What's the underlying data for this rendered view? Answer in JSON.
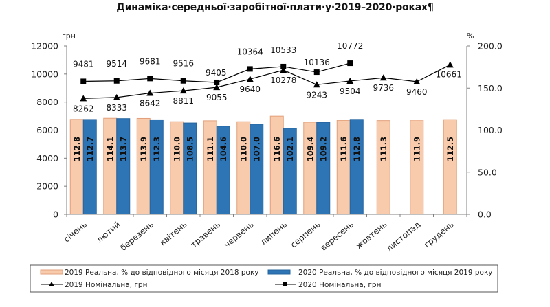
{
  "title": "Динаміка·середньої·заробітної·плати·у·2019–2020·роках¶",
  "chart_data": {
    "type": "bar",
    "title": "Динаміка·середньої·заробітної·плати·у·2019–2020·роках¶",
    "categories": [
      "січень",
      "лютий",
      "березень",
      "квітень",
      "травень",
      "червень",
      "липень",
      "серпень",
      "вересень",
      "жовтень",
      "листопад",
      "грудень"
    ],
    "left_axis": {
      "label": "грн",
      "ylim": [
        0,
        12000
      ],
      "ticks": [
        "0",
        "2000",
        "4000",
        "6000",
        "8000",
        "10000",
        "12000"
      ]
    },
    "right_axis": {
      "label": "%",
      "ylim": [
        0,
        200
      ],
      "ticks": [
        "0.0",
        "50.0",
        "100.0",
        "150.0",
        "200.0"
      ]
    },
    "grid": false,
    "legend_position": "bottom",
    "series": [
      {
        "name": "2019 Реальна, % до відповідного місяця 2018 року",
        "type": "bar",
        "axis": "right",
        "color": "#F8CBAD",
        "edge_color": "#E2A07A",
        "values": [
          112.8,
          114.1,
          113.9,
          110.0,
          111.1,
          110.0,
          116.6,
          109.4,
          111.6,
          111.3,
          111.9,
          112.5
        ],
        "labels": [
          "112.8",
          "114.1",
          "113.9",
          "110.0",
          "111.1",
          "110.0",
          "116.6",
          "109.4",
          "111.6",
          "111.3",
          "111.9",
          "112.5"
        ]
      },
      {
        "name": "2020 Реальна, % до відповідного місяця 2019 року",
        "type": "bar",
        "axis": "right",
        "color": "#2E75B6",
        "edge_color": "#26649E",
        "values": [
          112.7,
          113.7,
          112.3,
          108.5,
          104.6,
          107.0,
          102.1,
          109.2,
          112.8,
          null,
          null,
          null
        ],
        "labels": [
          "112.7",
          "113.7",
          "112.3",
          "108.5",
          "104.6",
          "107.0",
          "102.1",
          "109.2",
          "112.8",
          null,
          null,
          null
        ]
      },
      {
        "name": "2019 Номінальна, грн",
        "type": "line",
        "marker": "triangle",
        "axis": "left",
        "color": "#000000",
        "values": [
          8262,
          8333,
          8642,
          8811,
          9055,
          9640,
          10278,
          9243,
          9504,
          9736,
          9460,
          10661
        ],
        "labels": [
          "8262",
          "8333",
          "8642",
          "8811",
          "9055",
          "9640",
          "10278",
          "9243",
          "9504",
          "9736",
          "9460",
          "10661"
        ]
      },
      {
        "name": "2020 Номінальна, грн",
        "type": "line",
        "marker": "square",
        "axis": "left",
        "color": "#000000",
        "values": [
          9481,
          9514,
          9681,
          9516,
          9405,
          10364,
          10533,
          10136,
          10772,
          null,
          null,
          null
        ],
        "labels": [
          "9481",
          "9514",
          "9681",
          "9516",
          "9405",
          "10364",
          "10533",
          "10136",
          "10772",
          null,
          null,
          null
        ]
      }
    ]
  }
}
